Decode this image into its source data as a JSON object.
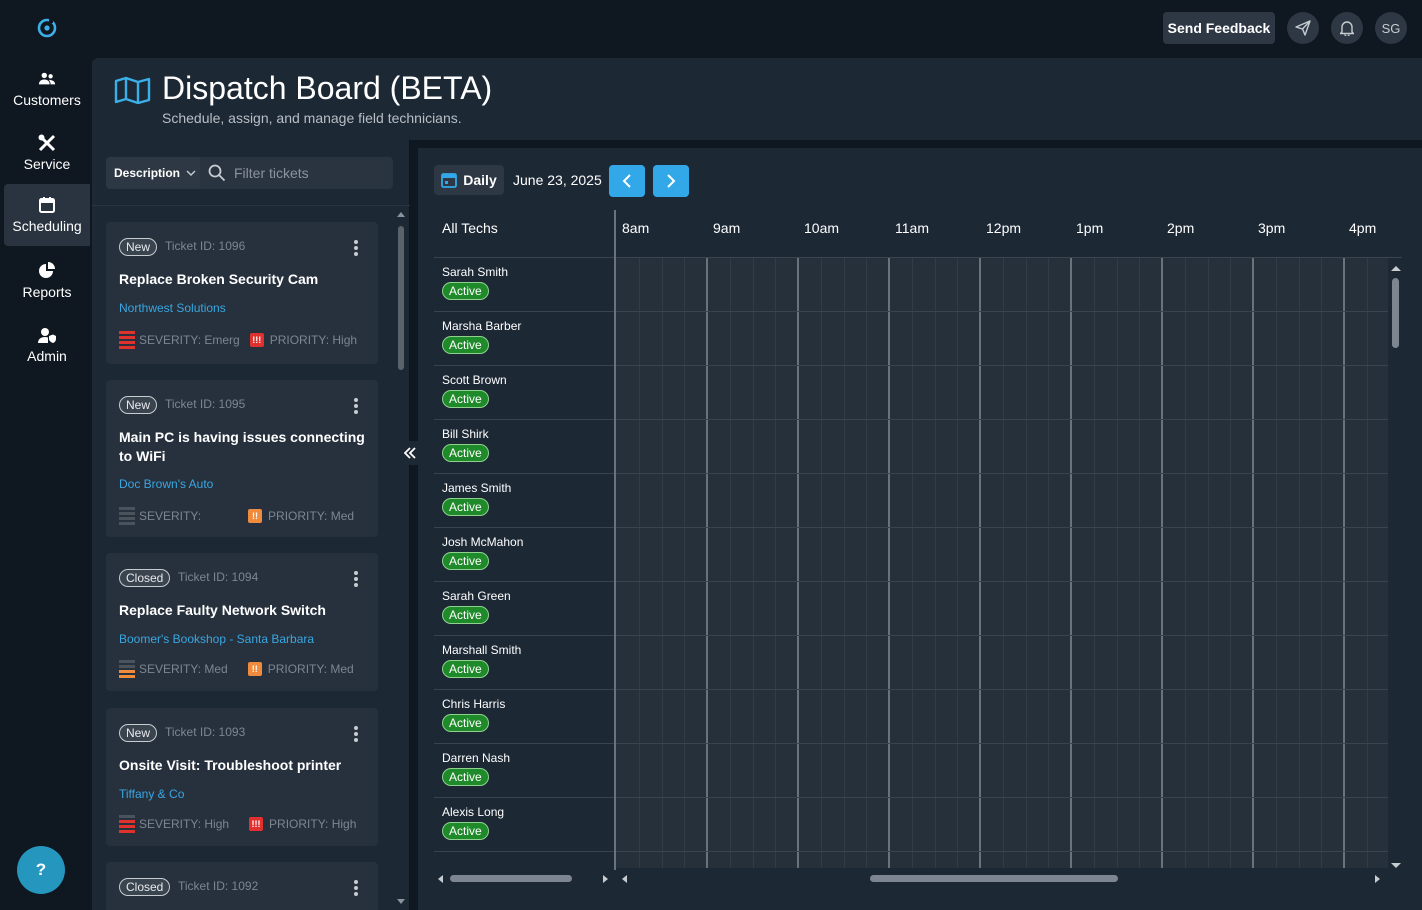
{
  "nav": {
    "items": [
      {
        "label": "Customers",
        "icon": "users-icon"
      },
      {
        "label": "Service",
        "icon": "tools-icon"
      },
      {
        "label": "Scheduling",
        "icon": "calendar-icon",
        "active": true
      },
      {
        "label": "Reports",
        "icon": "pie-chart-icon"
      },
      {
        "label": "Admin",
        "icon": "user-shield-icon"
      }
    ],
    "help_label": "?"
  },
  "topbar": {
    "feedback_label": "Send Feedback",
    "avatar_initials": "SG"
  },
  "header": {
    "title": "Dispatch Board (BETA)",
    "subtitle": "Schedule, assign, and manage field technicians."
  },
  "tickets": {
    "filter_field": "Description",
    "filter_placeholder": "Filter tickets",
    "items": [
      {
        "status": "New",
        "id_text": "Ticket ID: 1096",
        "title": "Replace Broken Security Cam",
        "customer": "Northwest Solutions",
        "severity": "SEVERITY: Emerg",
        "priority": "PRIORITY: High",
        "severity_color": "#e0312f",
        "priority_color": "#e0312f"
      },
      {
        "status": "New",
        "id_text": "Ticket ID: 1095",
        "title": "Main PC is having issues connecting to WiFi",
        "customer": "Doc Brown's Auto",
        "severity": "SEVERITY:",
        "priority": "PRIORITY: Med",
        "severity_color": "#4a535c",
        "priority_color": "#f08a3c"
      },
      {
        "status": "Closed",
        "id_text": "Ticket ID: 1094",
        "title": "Replace Faulty Network Switch",
        "customer": "Boomer's Bookshop - Santa Barbara",
        "severity": "SEVERITY: Med",
        "priority": "PRIORITY: Med",
        "severity_color": "#f08a3c",
        "priority_color": "#f08a3c"
      },
      {
        "status": "New",
        "id_text": "Ticket ID: 1093",
        "title": "Onsite Visit: Troubleshoot printer",
        "customer": "Tiffany & Co",
        "severity": "SEVERITY: High",
        "priority": "PRIORITY: High",
        "severity_color": "#e0312f",
        "priority_color": "#e0312f"
      },
      {
        "status": "Closed",
        "id_text": "Ticket ID: 1092"
      }
    ]
  },
  "schedule": {
    "view_label": "Daily",
    "date": "June 23, 2025",
    "all_techs_label": "All Techs",
    "hours": [
      "8am",
      "9am",
      "10am",
      "11am",
      "12pm",
      "1pm",
      "2pm",
      "3pm",
      "4pm"
    ],
    "technicians": [
      {
        "name": "Sarah Smith",
        "status": "Active"
      },
      {
        "name": "Marsha Barber",
        "status": "Active"
      },
      {
        "name": "Scott Brown",
        "status": "Active"
      },
      {
        "name": "Bill Shirk",
        "status": "Active"
      },
      {
        "name": "James Smith",
        "status": "Active"
      },
      {
        "name": "Josh McMahon",
        "status": "Active"
      },
      {
        "name": "Sarah Green",
        "status": "Active"
      },
      {
        "name": "Marshall Smith",
        "status": "Active"
      },
      {
        "name": "Chris Harris",
        "status": "Active"
      },
      {
        "name": "Darren Nash",
        "status": "Active"
      },
      {
        "name": "Alexis Long",
        "status": "Active"
      }
    ]
  },
  "colors": {
    "accent": "#33a8e8",
    "active_green": "#1f8a2a",
    "link_blue": "#3aa6e0"
  }
}
